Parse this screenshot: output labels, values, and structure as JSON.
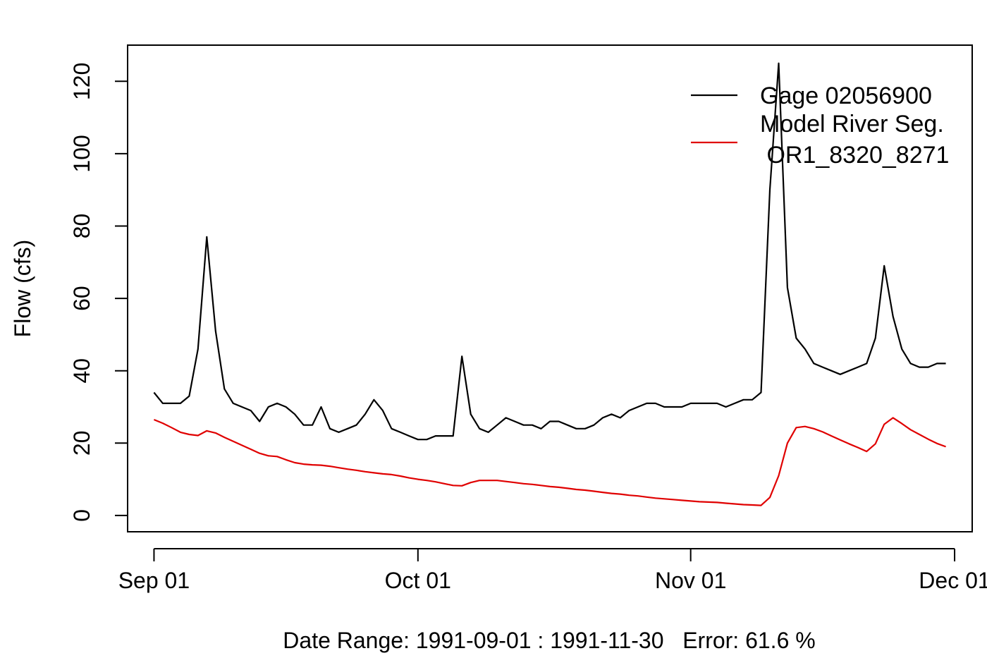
{
  "chart_data": {
    "type": "line",
    "title": "",
    "xlabel": "Date Range: 1991-09-01 : 1991-11-30   Error: 61.6 %",
    "ylabel": "Flow (cfs)",
    "x_start": "1991-09-01",
    "x_end": "1991-11-30",
    "xlim": [
      "1991-08-29",
      "1991-12-03"
    ],
    "ylim": [
      -4.5,
      130
    ],
    "x_ticks": [
      {
        "date": "1991-09-01",
        "label": "Sep 01"
      },
      {
        "date": "1991-10-01",
        "label": "Oct 01"
      },
      {
        "date": "1991-11-01",
        "label": "Nov 01"
      },
      {
        "date": "1991-12-01",
        "label": "Dec 01"
      }
    ],
    "y_ticks": [
      0,
      20,
      40,
      60,
      80,
      100,
      120
    ],
    "grid": false,
    "legend": {
      "position": "top-right",
      "entries": [
        "Gage 02056900",
        "Model River Seg.\n OR1_8320_8271"
      ]
    },
    "series": [
      {
        "name": "Gage 02056900",
        "color": "#000000",
        "values": [
          34,
          31,
          31,
          31,
          33,
          46,
          77,
          51,
          35,
          31,
          30,
          29,
          26,
          30,
          31,
          30,
          28,
          25,
          25,
          30,
          24,
          23,
          24,
          25,
          28,
          32,
          29,
          24,
          23,
          22,
          21,
          21,
          22,
          22,
          22,
          44,
          28,
          24,
          23,
          25,
          27,
          26,
          25,
          25,
          24,
          26,
          26,
          25,
          24,
          24,
          25,
          27,
          28,
          27,
          29,
          30,
          31,
          31,
          30,
          30,
          30,
          31,
          31,
          31,
          31,
          30,
          31,
          32,
          32,
          34,
          90,
          125,
          63,
          49,
          46,
          42,
          41,
          40,
          39,
          40,
          41,
          42,
          49,
          69,
          55,
          46,
          42,
          41,
          41,
          42,
          42
        ]
      },
      {
        "name": "Model River Seg.\n OR1_8320_8271",
        "color": "#e00000",
        "values": [
          26.5,
          25.5,
          24.3,
          23.0,
          22.4,
          22.1,
          23.4,
          22.8,
          21.6,
          20.5,
          19.4,
          18.3,
          17.2,
          16.5,
          16.3,
          15.4,
          14.6,
          14.2,
          14.0,
          13.9,
          13.6,
          13.2,
          12.8,
          12.5,
          12.1,
          11.8,
          11.5,
          11.3,
          10.9,
          10.4,
          10.0,
          9.7,
          9.3,
          8.8,
          8.3,
          8.2,
          9.1,
          9.7,
          9.7,
          9.7,
          9.4,
          9.1,
          8.8,
          8.6,
          8.3,
          8.0,
          7.8,
          7.5,
          7.2,
          7.0,
          6.7,
          6.4,
          6.1,
          5.9,
          5.6,
          5.4,
          5.1,
          4.8,
          4.6,
          4.4,
          4.2,
          4.0,
          3.8,
          3.7,
          3.6,
          3.4,
          3.2,
          3.0,
          2.9,
          2.8,
          5.0,
          11.0,
          20.0,
          24.3,
          24.6,
          24.0,
          23.1,
          22.0,
          20.9,
          19.8,
          18.8,
          17.7,
          19.8,
          25.2,
          27.0,
          25.4,
          23.7,
          22.4,
          21.1,
          19.9,
          19.0
        ]
      }
    ]
  }
}
